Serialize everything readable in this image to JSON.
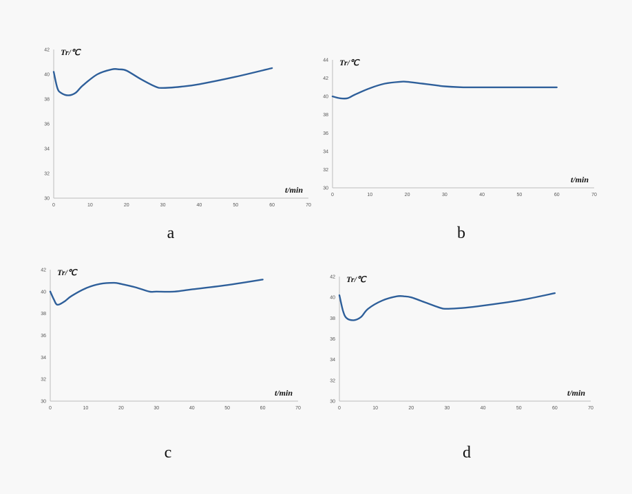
{
  "figure": {
    "panel_labels": [
      "a",
      "b",
      "c",
      "d"
    ]
  },
  "chart_data": [
    {
      "type": "line",
      "panel_label": "a",
      "ylabel": "Tr/℃",
      "xlabel": "t/min",
      "xlim": [
        0,
        70
      ],
      "ylim": [
        30,
        42
      ],
      "xticks": [
        0,
        10,
        20,
        30,
        40,
        50,
        60,
        70
      ],
      "yticks": [
        30,
        32,
        34,
        36,
        38,
        40,
        42
      ],
      "grid": false,
      "series": [
        {
          "color": "#2e5f9a",
          "x": [
            0,
            1,
            2,
            4,
            6,
            8,
            12,
            16,
            18,
            20,
            24,
            28,
            30,
            35,
            40,
            50,
            60
          ],
          "y": [
            40.2,
            38.9,
            38.5,
            38.3,
            38.5,
            39.1,
            40.0,
            40.4,
            40.4,
            40.3,
            39.6,
            39.0,
            38.9,
            39.0,
            39.2,
            39.8,
            40.5
          ]
        }
      ]
    },
    {
      "type": "line",
      "panel_label": "b",
      "ylabel": "Tr/℃",
      "xlabel": "t/min",
      "xlim": [
        0,
        70
      ],
      "ylim": [
        30,
        44
      ],
      "xticks": [
        0,
        10,
        20,
        30,
        40,
        50,
        60,
        70
      ],
      "yticks": [
        30,
        32,
        34,
        36,
        38,
        40,
        42,
        44
      ],
      "grid": false,
      "series": [
        {
          "color": "#2e5f9a",
          "x": [
            0,
            2,
            4,
            6,
            10,
            14,
            18,
            20,
            24,
            28,
            30,
            35,
            40,
            50,
            60
          ],
          "y": [
            40.0,
            39.8,
            39.8,
            40.2,
            40.9,
            41.4,
            41.6,
            41.6,
            41.4,
            41.2,
            41.1,
            41.0,
            41.0,
            41.0,
            41.0
          ]
        }
      ]
    },
    {
      "type": "line",
      "panel_label": "c",
      "ylabel": "Tr/℃",
      "xlabel": "t/min",
      "xlim": [
        0,
        70
      ],
      "ylim": [
        30,
        42
      ],
      "xticks": [
        0,
        10,
        20,
        30,
        40,
        50,
        60,
        70
      ],
      "yticks": [
        30,
        32,
        34,
        36,
        38,
        40,
        42
      ],
      "grid": false,
      "series": [
        {
          "color": "#2e5f9a",
          "x": [
            0,
            1,
            2,
            4,
            6,
            10,
            14,
            18,
            20,
            24,
            28,
            30,
            35,
            40,
            50,
            60
          ],
          "y": [
            40.0,
            39.3,
            38.8,
            39.1,
            39.6,
            40.3,
            40.7,
            40.8,
            40.7,
            40.4,
            40.0,
            40.0,
            40.0,
            40.2,
            40.6,
            41.1
          ]
        }
      ]
    },
    {
      "type": "line",
      "panel_label": "d",
      "ylabel": "Tr/℃",
      "xlabel": "t/min",
      "xlim": [
        0,
        70
      ],
      "ylim": [
        30,
        42
      ],
      "xticks": [
        0,
        10,
        20,
        30,
        40,
        50,
        60,
        70
      ],
      "yticks": [
        30,
        32,
        34,
        36,
        38,
        40,
        42
      ],
      "grid": false,
      "series": [
        {
          "color": "#2e5f9a",
          "x": [
            0,
            1,
            2,
            4,
            6,
            8,
            12,
            16,
            18,
            20,
            24,
            28,
            30,
            35,
            40,
            50,
            60
          ],
          "y": [
            40.2,
            38.7,
            38.0,
            37.8,
            38.1,
            38.9,
            39.7,
            40.1,
            40.1,
            40.0,
            39.5,
            39.0,
            38.9,
            39.0,
            39.2,
            39.7,
            40.4
          ]
        }
      ]
    }
  ]
}
